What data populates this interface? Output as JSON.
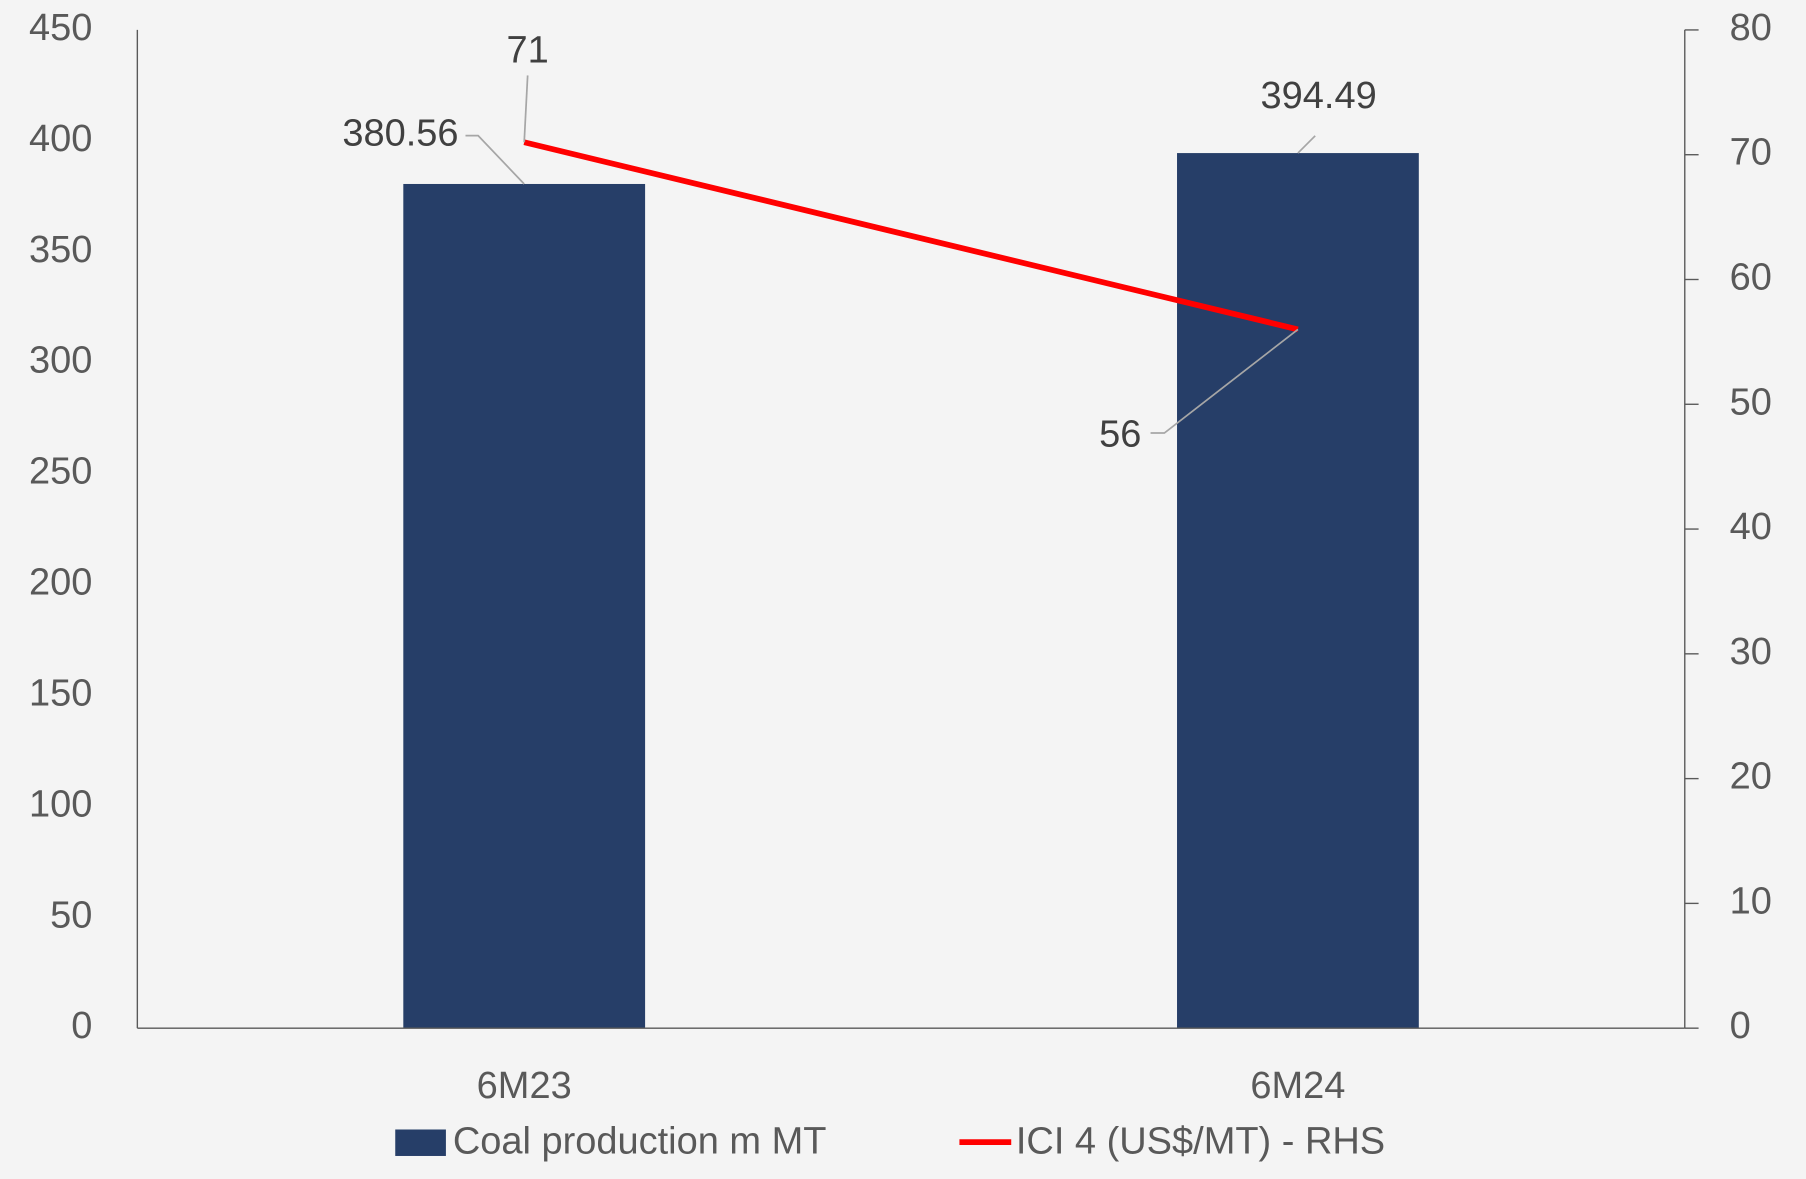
{
  "chart_data": {
    "type": "bar",
    "categories": [
      "6M23",
      "6M24"
    ],
    "series": [
      {
        "name": "Coal production m MT",
        "color": "#263e68",
        "values": [
          380.56,
          394.49
        ]
      },
      {
        "name": "ICI 4 (US$/MT) - RHS",
        "color": "#ff0000",
        "type": "line",
        "axis": "y2",
        "values": [
          71,
          56
        ]
      }
    ],
    "ylim": [
      0,
      450
    ],
    "yticks": [
      0,
      50,
      100,
      150,
      200,
      250,
      300,
      350,
      400,
      450
    ],
    "y2lim": [
      0,
      80
    ],
    "y2ticks": [
      0,
      10,
      20,
      30,
      40,
      50,
      60,
      70,
      80
    ],
    "grid": false,
    "legend": "bottom"
  }
}
